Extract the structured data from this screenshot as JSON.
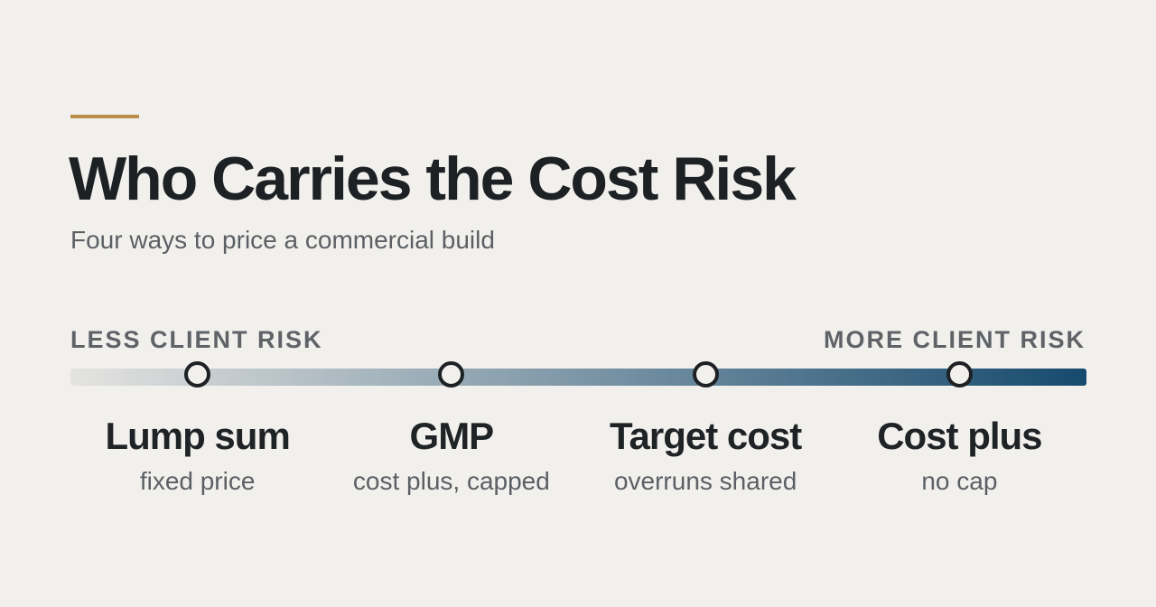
{
  "header": {
    "title": "Who Carries the Cost Risk",
    "subtitle": "Four ways to price a commercial build"
  },
  "scale": {
    "left_label": "LESS CLIENT RISK",
    "right_label": "MORE CLIENT RISK",
    "gradient_start": "#e4e3e0",
    "gradient_end": "#164a6e",
    "accent": "#b98d4a"
  },
  "options": [
    {
      "name": "Lump sum",
      "description": "fixed price",
      "risk_position": 0.125
    },
    {
      "name": "GMP",
      "description": "cost plus, capped",
      "risk_position": 0.375
    },
    {
      "name": "Target cost",
      "description": "overruns shared",
      "risk_position": 0.625
    },
    {
      "name": "Cost plus",
      "description": "no cap",
      "risk_position": 0.875
    }
  ]
}
